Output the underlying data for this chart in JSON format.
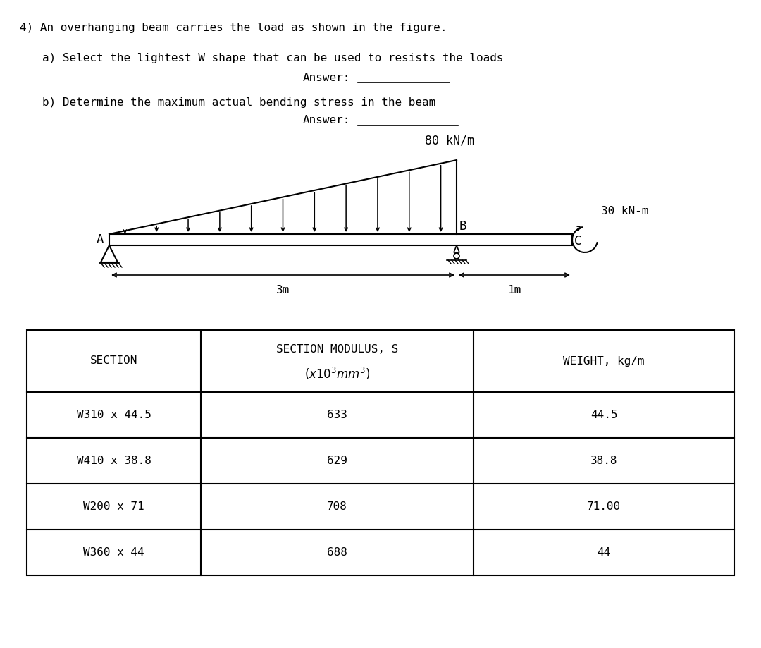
{
  "title_line": "4) An overhanging beam carries the load as shown in the figure.",
  "question_a": "a) Select the lightest W shape that can be used to resists the loads",
  "answer_a_label": "Answer:",
  "question_b": "b) Determine the maximum actual bending stress in the beam",
  "answer_b_label": "Answer:",
  "load_label": "80 kN/m",
  "moment_label": "30 kN-m",
  "dim_3m": "3m",
  "dim_1m": "1m",
  "point_A": "A",
  "point_B": "B",
  "point_C": "C",
  "table_headers_col0": "SECTION",
  "table_headers_col1a": "SECTION MODULUS, S",
  "table_headers_col1b": "(x10³mm³)",
  "table_headers_col2": "WEIGHT, kg/m",
  "table_rows": [
    [
      "W310 x 44.5",
      "633",
      "44.5"
    ],
    [
      "W410 x 38.8",
      "629",
      "38.8"
    ],
    [
      "W200 x 71",
      "708",
      "71.00"
    ],
    [
      "W360 x 44",
      "688",
      "44"
    ]
  ],
  "bg_color": "#ffffff",
  "text_color": "#000000",
  "font_size": 11.5,
  "fig_width": 10.8,
  "fig_height": 9.19
}
